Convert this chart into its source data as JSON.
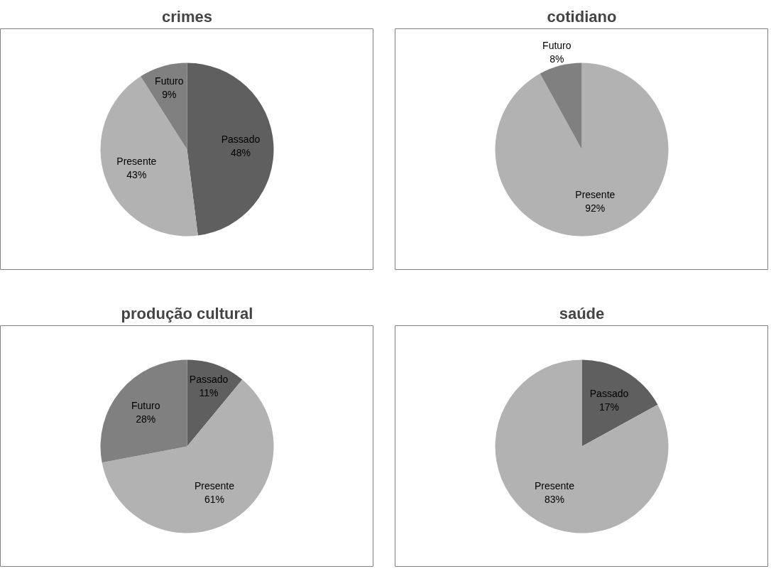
{
  "chart_data": [
    {
      "type": "pie",
      "title": "crimes",
      "categories": [
        "Passado",
        "Presente",
        "Futuro"
      ],
      "values": [
        48,
        43,
        9
      ],
      "value_labels": [
        "48%",
        "43%",
        "9%"
      ],
      "colors": [
        "#5f5f5f",
        "#b2b2b2",
        "#808080"
      ],
      "legend": false
    },
    {
      "type": "pie",
      "title": "cotidiano",
      "categories": [
        "Presente",
        "Futuro"
      ],
      "values": [
        92,
        8
      ],
      "value_labels": [
        "92%",
        "8%"
      ],
      "colors": [
        "#b2b2b2",
        "#808080"
      ],
      "legend": false
    },
    {
      "type": "pie",
      "title": "produção cultural",
      "categories": [
        "Passado",
        "Presente",
        "Futuro"
      ],
      "values": [
        11,
        61,
        28
      ],
      "value_labels": [
        "11%",
        "61%",
        "28%"
      ],
      "colors": [
        "#5f5f5f",
        "#b2b2b2",
        "#808080"
      ],
      "legend": false
    },
    {
      "type": "pie",
      "title": "saúde",
      "categories": [
        "Passado",
        "Presente"
      ],
      "values": [
        17,
        83
      ],
      "value_labels": [
        "17%",
        "83%"
      ],
      "colors": [
        "#5f5f5f",
        "#b2b2b2"
      ],
      "legend": false
    }
  ]
}
